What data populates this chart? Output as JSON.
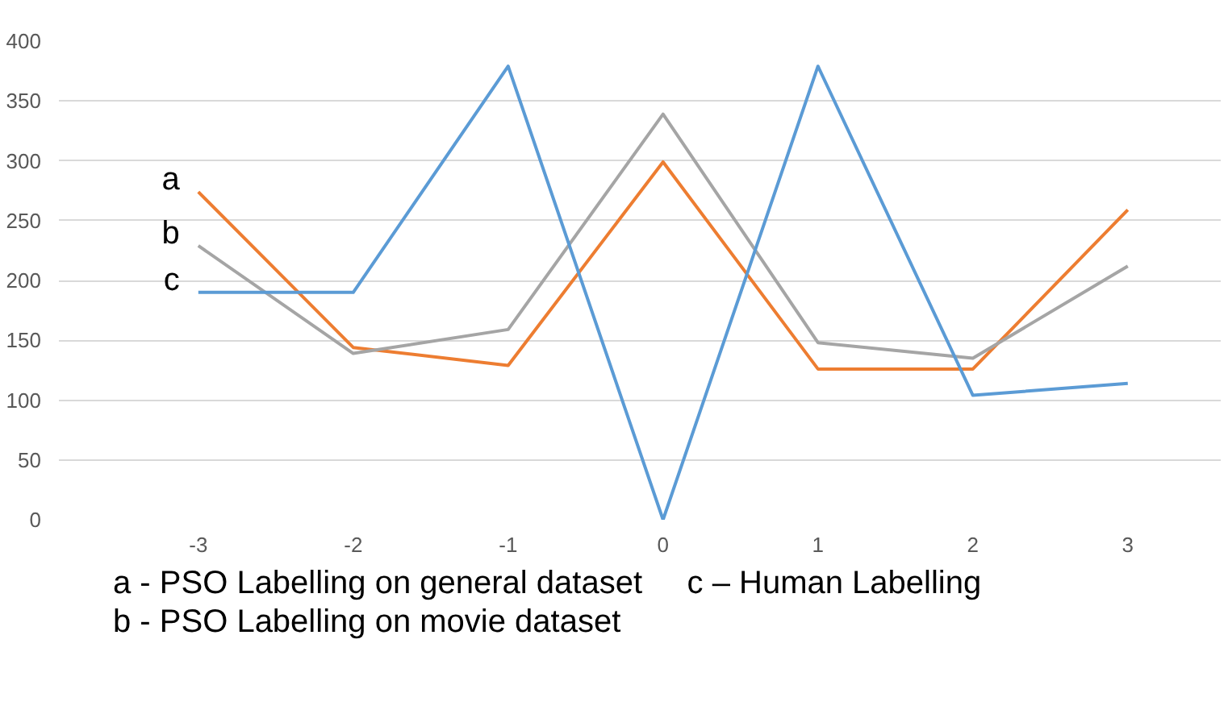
{
  "chart_data": {
    "type": "line",
    "categories": [
      "-3",
      "-2",
      "-1",
      "0",
      "1",
      "2",
      "3"
    ],
    "series": [
      {
        "name": "a",
        "color": "#ed7d31",
        "values": [
          274,
          144,
          129,
          299,
          126,
          126,
          259
        ]
      },
      {
        "name": "b",
        "color": "#a5a5a5",
        "values": [
          229,
          139,
          159,
          339,
          148,
          135,
          212
        ]
      },
      {
        "name": "c",
        "color": "#5b9bd5",
        "values": [
          190,
          190,
          379,
          0,
          379,
          104,
          114
        ]
      }
    ],
    "ylim": [
      0,
      400
    ],
    "yticks": [
      0,
      50,
      100,
      150,
      200,
      250,
      300,
      350,
      400
    ],
    "grid": "y",
    "marker": "none",
    "line_style": "solid",
    "annotations": [
      "a - PSO Labelling on general dataset",
      "c – Human Labelling",
      "b - PSO Labelling on movie dataset"
    ]
  }
}
